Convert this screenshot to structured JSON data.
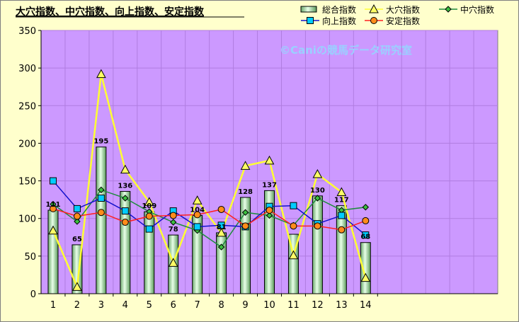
{
  "chart_data": {
    "type": "bar",
    "title": "大穴指数、中穴指数、向上指数、安定指数",
    "watermark": "©Caniの競馬データ研究室",
    "categories": [
      "1",
      "2",
      "3",
      "4",
      "5",
      "6",
      "7",
      "8",
      "9",
      "10",
      "11",
      "12",
      "13",
      "14"
    ],
    "ylim": [
      0,
      350
    ],
    "yticks": [
      0,
      50,
      100,
      150,
      200,
      250,
      300,
      350
    ],
    "grid": true,
    "legend_position": "top-right",
    "bars": {
      "name": "総合指数",
      "values": [
        111,
        65,
        195,
        136,
        109,
        78,
        104,
        81,
        128,
        137,
        79,
        130,
        117,
        68
      ],
      "labels": [
        "111",
        "65",
        "195",
        "136",
        "109",
        "78",
        "104",
        "81",
        "128",
        "137",
        "",
        "130",
        "117",
        "68"
      ],
      "color": "#a8e0a8"
    },
    "series": [
      {
        "name": "大穴指数",
        "marker": "triangle",
        "color": "#ffff33",
        "values": [
          84,
          9,
          292,
          165,
          122,
          41,
          124,
          81,
          170,
          177,
          51,
          159,
          135,
          21
        ]
      },
      {
        "name": "中穴指数",
        "marker": "diamond",
        "color": "#1e8c3c",
        "values": [
          119,
          96,
          138,
          127,
          109,
          95,
          84,
          62,
          108,
          104,
          91,
          127,
          111,
          115
        ]
      },
      {
        "name": "向上指数",
        "marker": "square",
        "color": "#1010cc",
        "fill": "#00ccff",
        "values": [
          150,
          113,
          127,
          110,
          86,
          110,
          89,
          91,
          89,
          116,
          117,
          93,
          104,
          78
        ]
      },
      {
        "name": "安定指数",
        "marker": "circle",
        "color": "#ff2020",
        "fill": "#ff8c1a",
        "values": [
          113,
          103,
          108,
          95,
          103,
          104,
          105,
          112,
          90,
          111,
          90,
          90,
          85,
          97
        ]
      }
    ],
    "x_slots": 19,
    "colors": {
      "plot_bg": "#cc99ff",
      "grid": "#b07de0",
      "axis": "#000000"
    }
  }
}
